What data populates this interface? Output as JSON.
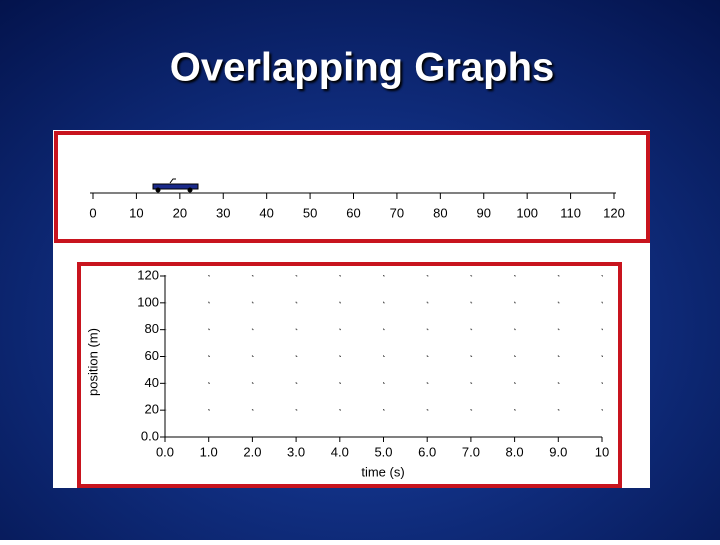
{
  "title": "Overlapping Graphs",
  "ruler": {
    "ticks": [
      0,
      10,
      20,
      30,
      40,
      50,
      60,
      70,
      80,
      90,
      100,
      110,
      120
    ],
    "lim": [
      0,
      120
    ]
  },
  "chart_data": {
    "type": "scatter",
    "x_label": "time (s)",
    "y_label": "position (m)",
    "xlim": [
      0,
      10
    ],
    "ylim": [
      0,
      120
    ],
    "xticks": [
      {
        "value": 0,
        "label": "0.0"
      },
      {
        "value": 1,
        "label": "1.0"
      },
      {
        "value": 2,
        "label": "2.0"
      },
      {
        "value": 3,
        "label": "3.0"
      },
      {
        "value": 4,
        "label": "4.0"
      },
      {
        "value": 5,
        "label": "5.0"
      },
      {
        "value": 6,
        "label": "6.0"
      },
      {
        "value": 7,
        "label": "7.0"
      },
      {
        "value": 8,
        "label": "8.0"
      },
      {
        "value": 9,
        "label": "9.0"
      },
      10
    ],
    "yticks": [
      {
        "value": 0,
        "label": "0.0"
      },
      20,
      40,
      60,
      80,
      100,
      120
    ],
    "grid": true
  }
}
